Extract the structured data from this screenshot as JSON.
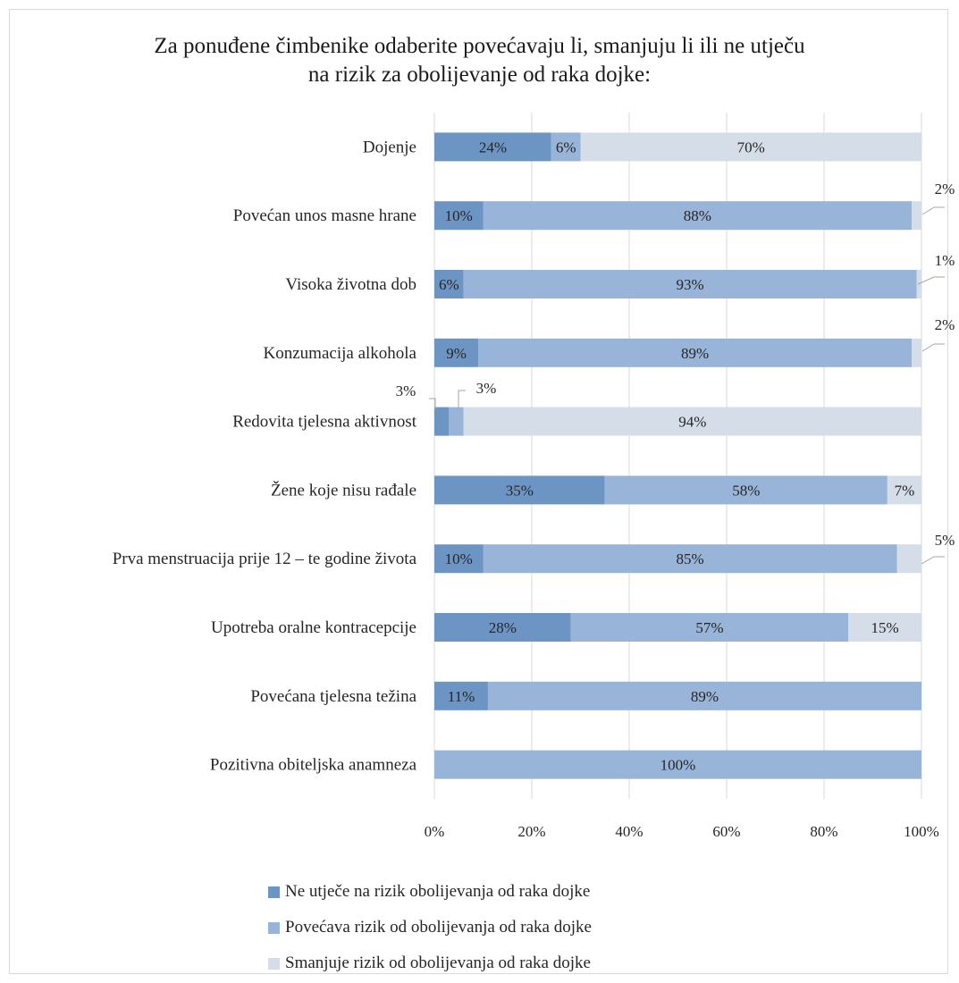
{
  "chart_data": {
    "type": "bar",
    "orientation": "horizontal",
    "stacked": "percent",
    "title": "Za ponuđene čimbenike odaberite  povećavaju li, smanjuju li ili  ne utječu na rizik  za obolijevanje od raka dojke:",
    "title_lines": [
      "Za ponuđene čimbenike odaberite  povećavaju li, smanjuju li ili  ne utječu",
      "na rizik  za obolijevanje od raka dojke:"
    ],
    "categories": [
      "Dojenje",
      "Povećan unos masne hrane",
      "Visoka životna dob",
      "Konzumacija alkohola",
      "Redovita  tjelesna aktivnost",
      "Žene koje nisu rađale",
      "Prva menstruacija prije 12 – te godine života",
      "Upotreba oralne kontracepcije",
      "Povećana tjelesna težina",
      "Pozitivna obiteljska anamneza"
    ],
    "series": [
      {
        "name": "Ne utječe na rizik obolijevanja od raka dojke",
        "color": "#6c95c4",
        "values": [
          24,
          10,
          6,
          9,
          3,
          35,
          10,
          28,
          11,
          0
        ]
      },
      {
        "name": "Povećava rizik od obolijevanja od  raka dojke",
        "color": "#98b4d9",
        "values": [
          6,
          88,
          93,
          89,
          3,
          58,
          85,
          57,
          89,
          100
        ]
      },
      {
        "name": "Smanjuje rizik od obolijevanja od raka dojke",
        "color": "#d5dde9",
        "values": [
          70,
          2,
          1,
          2,
          94,
          7,
          5,
          15,
          0,
          0
        ]
      }
    ],
    "x_ticks": [
      "0%",
      "20%",
      "40%",
      "60%",
      "80%",
      "100%"
    ],
    "xlim": [
      0,
      100
    ],
    "grid": true,
    "legend_position": "bottom"
  }
}
